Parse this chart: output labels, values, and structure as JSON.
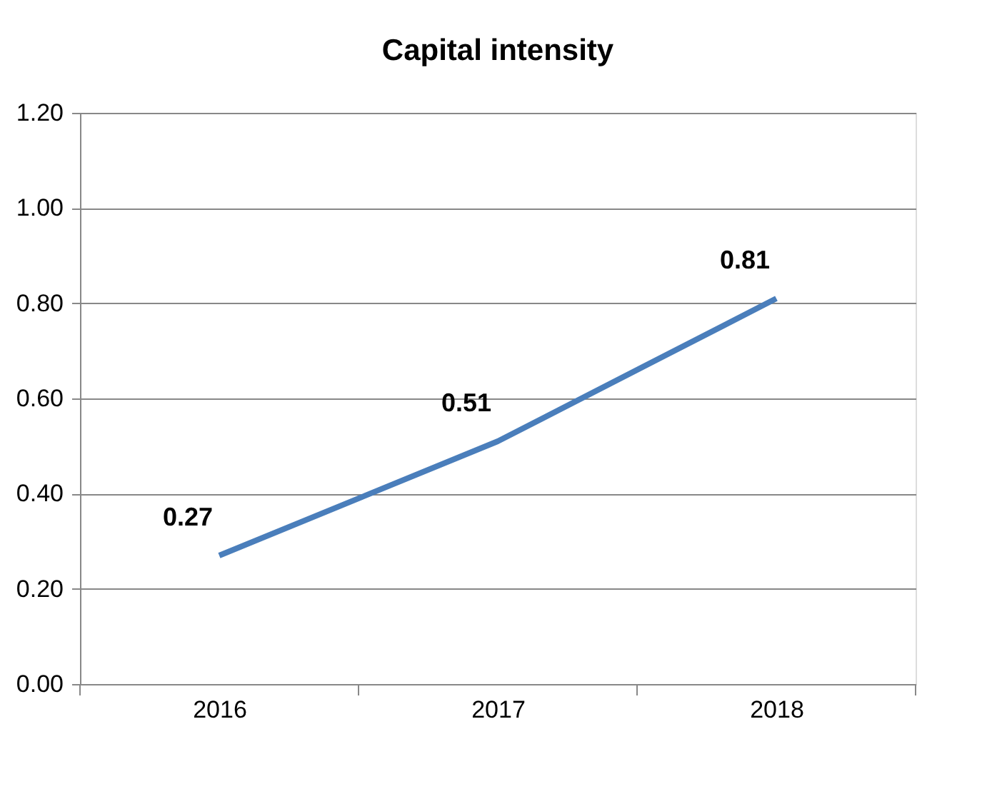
{
  "chart_data": {
    "type": "line",
    "title": "Capital intensity",
    "categories": [
      "2016",
      "2017",
      "2018"
    ],
    "series": [
      {
        "color": "#4a7ebb",
        "values": [
          0.27,
          0.51,
          0.81
        ]
      }
    ],
    "ylim": [
      0,
      1.2
    ],
    "yticks": [
      {
        "value": 0,
        "label": "0.00"
      },
      {
        "value": 0.2,
        "label": "0.20"
      },
      {
        "value": 0.4,
        "label": "0.40"
      },
      {
        "value": 0.6,
        "label": "0.60"
      },
      {
        "value": 0.8,
        "label": "0.80"
      },
      {
        "value": 1.0,
        "label": "1.00"
      },
      {
        "value": 1.2,
        "label": "1.20"
      }
    ],
    "grid": "y",
    "data_labels": true,
    "marker": "none",
    "line_style": "solid"
  }
}
